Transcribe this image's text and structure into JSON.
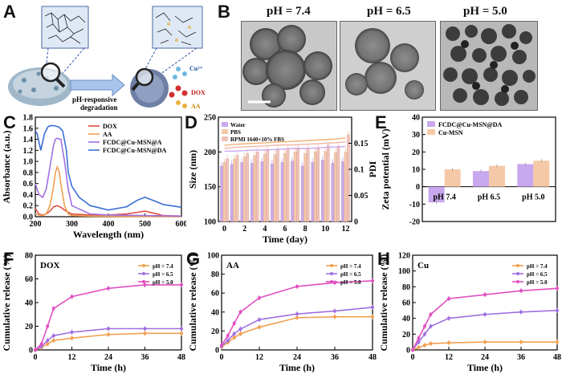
{
  "panels": {
    "A": {
      "label": "A",
      "arrow_text": [
        "pH-responsive",
        "degradation"
      ],
      "legend": [
        "Cu²⁺",
        "DOX",
        "AA"
      ]
    },
    "B": {
      "label": "B",
      "titles": [
        "pH = 7.4",
        "pH = 6.5",
        "pH = 5.0"
      ]
    },
    "C": {
      "label": "C"
    },
    "D": {
      "label": "D"
    },
    "E": {
      "label": "E"
    },
    "F": {
      "label": "F"
    },
    "G": {
      "label": "G"
    },
    "H": {
      "label": "H"
    }
  },
  "colors": {
    "orange": "#f0a050",
    "purple": "#a070e0",
    "pink": "#e050c0",
    "red": "#e05040",
    "blue": "#3b6fd6",
    "peach": "#f5c9a8"
  },
  "chart_data": [
    {
      "panel": "C",
      "type": "line",
      "xlabel": "Wavelength (nm)",
      "ylabel": "Absorbance (a.u.)",
      "xlim": [
        200,
        600
      ],
      "ylim": [
        0,
        1.8
      ],
      "xticks": [
        200,
        300,
        400,
        500,
        600
      ],
      "yticks": [
        0.0,
        0.2,
        0.4,
        0.6,
        0.8,
        1.0,
        1.2,
        1.4,
        1.6,
        1.8
      ],
      "legend_position": "top-right",
      "series": [
        {
          "name": "DOX",
          "color": "#e05040",
          "x": [
            200,
            210,
            220,
            230,
            240,
            250,
            260,
            270,
            280,
            290,
            300,
            350,
            400,
            450,
            480,
            500,
            520,
            550,
            600
          ],
          "y": [
            0.15,
            0.05,
            0.03,
            0.05,
            0.1,
            0.18,
            0.2,
            0.17,
            0.12,
            0.08,
            0.05,
            0.03,
            0.03,
            0.05,
            0.08,
            0.1,
            0.07,
            0.02,
            0.01
          ]
        },
        {
          "name": "AA",
          "color": "#f0a050",
          "x": [
            200,
            210,
            220,
            230,
            240,
            250,
            255,
            260,
            265,
            270,
            280,
            290,
            300,
            350,
            600
          ],
          "y": [
            0.05,
            0.03,
            0.02,
            0.05,
            0.2,
            0.55,
            0.8,
            0.9,
            0.82,
            0.6,
            0.2,
            0.05,
            0.02,
            0.01,
            0.0
          ]
        },
        {
          "name": "FCDC@Cu-MSN@A",
          "color": "#a070e0",
          "x": [
            200,
            210,
            220,
            230,
            240,
            250,
            255,
            260,
            270,
            280,
            290,
            300,
            350,
            400,
            500,
            600
          ],
          "y": [
            0.6,
            0.4,
            0.35,
            0.5,
            0.9,
            1.3,
            1.4,
            1.42,
            1.4,
            1.0,
            0.5,
            0.2,
            0.05,
            0.03,
            0.02,
            0.01
          ]
        },
        {
          "name": "FCDC@Cu-MSN@DA",
          "color": "#3b6fd6",
          "x": [
            200,
            205,
            215,
            225,
            235,
            245,
            255,
            265,
            275,
            285,
            290,
            300,
            320,
            350,
            400,
            450,
            480,
            500,
            520,
            550,
            600
          ],
          "y": [
            1.55,
            1.5,
            1.2,
            1.5,
            1.63,
            1.65,
            1.64,
            1.62,
            1.55,
            1.2,
            0.8,
            0.55,
            0.35,
            0.2,
            0.12,
            0.18,
            0.3,
            0.35,
            0.3,
            0.22,
            0.17
          ]
        }
      ]
    },
    {
      "panel": "D",
      "type": "bar",
      "xlabel": "Time (day)",
      "ylabel": "Size (nm)",
      "y2label": "PDI",
      "categories": [
        0,
        1,
        2,
        3,
        4,
        5,
        6,
        7,
        8,
        9,
        10,
        11,
        12
      ],
      "xticks": [
        0,
        2,
        4,
        6,
        8,
        10,
        12
      ],
      "ylim": [
        100,
        250
      ],
      "yticks": [
        100,
        150,
        200,
        250
      ],
      "y2lim": [
        0,
        0.2
      ],
      "y2ticks": [
        0,
        0.05,
        0.1,
        0.15
      ],
      "legend_position": "top-left",
      "series": [
        {
          "name": "Water",
          "color": "#c8a8ee",
          "values": [
            180,
            182,
            185,
            184,
            186,
            183,
            185,
            187,
            180,
            185,
            188,
            184,
            186
          ]
        },
        {
          "name": "PBS",
          "color": "#f5c9a8",
          "values": [
            185,
            190,
            193,
            195,
            197,
            196,
            198,
            200,
            198,
            200,
            201,
            199,
            200
          ]
        },
        {
          "name": "RPMI 1640+10% FBS",
          "color": "#f2c2b8",
          "values": [
            190,
            195,
            198,
            200,
            202,
            203,
            205,
            206,
            205,
            206,
            210,
            208,
            225
          ]
        }
      ],
      "pdi_series": [
        {
          "color": "#c8a8ee",
          "values": [
            0.135,
            0.135,
            0.136,
            0.137,
            0.137,
            0.138,
            0.139,
            0.14,
            0.14,
            0.141,
            0.142,
            0.143,
            0.144
          ]
        },
        {
          "color": "#f2b8a8",
          "values": [
            0.14,
            0.142,
            0.143,
            0.144,
            0.145,
            0.146,
            0.147,
            0.147,
            0.148,
            0.149,
            0.15,
            0.151,
            0.153
          ]
        },
        {
          "color": "#f0b070",
          "values": [
            0.146,
            0.148,
            0.149,
            0.15,
            0.151,
            0.152,
            0.153,
            0.154,
            0.155,
            0.156,
            0.157,
            0.158,
            0.16
          ]
        }
      ]
    },
    {
      "panel": "E",
      "type": "bar",
      "ylabel": "Zeta potential (mV)",
      "categories": [
        "pH 7.4",
        "pH 6.5",
        "pH 5.0"
      ],
      "ylim": [
        -20,
        40
      ],
      "yticks": [
        -20,
        -10,
        0,
        10,
        20,
        30,
        40
      ],
      "legend_position": "top-left",
      "series": [
        {
          "name": "FCDC@Cu-MSN@DA",
          "color": "#c8a8ee",
          "values": [
            -9,
            9,
            13
          ]
        },
        {
          "name": "Cu-MSN",
          "color": "#f5c9a8",
          "values": [
            10,
            12,
            15
          ]
        }
      ]
    },
    {
      "panel": "F",
      "type": "line",
      "xlabel": "Time (h)",
      "ylabel": "Cumulative release (%)",
      "annotation": "DOX",
      "xlim": [
        0,
        48
      ],
      "xticks": [
        0,
        12,
        24,
        36,
        48
      ],
      "ylim": [
        0,
        80
      ],
      "yticks": [
        0,
        20,
        40,
        60,
        80
      ],
      "legend_position": "top-right",
      "series": [
        {
          "name": "pH = 7.4",
          "color": "#f0a050",
          "x": [
            0,
            2,
            4,
            6,
            12,
            24,
            36,
            48
          ],
          "y": [
            0,
            2,
            5,
            8,
            10,
            13,
            14,
            14
          ]
        },
        {
          "name": "pH = 6.5",
          "color": "#a070e0",
          "x": [
            0,
            2,
            4,
            6,
            12,
            24,
            36,
            48
          ],
          "y": [
            0,
            3,
            8,
            12,
            15,
            18,
            18,
            18
          ]
        },
        {
          "name": "pH = 5.0",
          "color": "#e050c0",
          "x": [
            0,
            2,
            4,
            6,
            12,
            24,
            36,
            48
          ],
          "y": [
            0,
            5,
            20,
            35,
            45,
            52,
            55,
            55
          ]
        }
      ]
    },
    {
      "panel": "G",
      "type": "line",
      "xlabel": "Time (h)",
      "ylabel": "Cumulative release (%)",
      "annotation": "AA",
      "xlim": [
        0,
        48
      ],
      "xticks": [
        0,
        12,
        24,
        36,
        48
      ],
      "ylim": [
        0,
        100
      ],
      "yticks": [
        0,
        20,
        40,
        60,
        80,
        100
      ],
      "legend_position": "top-right",
      "series": [
        {
          "name": "pH = 7.4",
          "color": "#f0a050",
          "x": [
            0,
            2,
            4,
            6,
            12,
            24,
            36,
            48
          ],
          "y": [
            3,
            8,
            13,
            17,
            24,
            34,
            35,
            35
          ]
        },
        {
          "name": "pH = 6.5",
          "color": "#a070e0",
          "x": [
            0,
            2,
            4,
            6,
            12,
            24,
            36,
            48
          ],
          "y": [
            4,
            10,
            17,
            22,
            32,
            38,
            41,
            45
          ]
        },
        {
          "name": "pH = 5.0",
          "color": "#e050c0",
          "x": [
            0,
            2,
            4,
            6,
            12,
            24,
            36,
            48
          ],
          "y": [
            5,
            15,
            28,
            40,
            55,
            67,
            71,
            73
          ]
        }
      ]
    },
    {
      "panel": "H",
      "type": "line",
      "xlabel": "Time (h)",
      "ylabel": "Cumulative release (%)",
      "annotation": "Cu",
      "xlim": [
        0,
        48
      ],
      "xticks": [
        0,
        12,
        24,
        36,
        48
      ],
      "ylim": [
        0,
        120
      ],
      "yticks": [
        0,
        20,
        40,
        60,
        80,
        100,
        120
      ],
      "legend_position": "top-right",
      "series": [
        {
          "name": "pH = 7.4",
          "color": "#f0a050",
          "x": [
            0,
            2,
            4,
            6,
            12,
            24,
            36,
            48
          ],
          "y": [
            0,
            3,
            6,
            8,
            9,
            10,
            10,
            10
          ]
        },
        {
          "name": "pH = 6.5",
          "color": "#a070e0",
          "x": [
            0,
            2,
            4,
            6,
            12,
            24,
            36,
            48
          ],
          "y": [
            0,
            10,
            20,
            30,
            40,
            45,
            48,
            50
          ]
        },
        {
          "name": "pH = 5.0",
          "color": "#e050c0",
          "x": [
            0,
            2,
            4,
            6,
            12,
            24,
            36,
            48
          ],
          "y": [
            0,
            15,
            30,
            45,
            65,
            70,
            75,
            78
          ]
        }
      ]
    }
  ]
}
